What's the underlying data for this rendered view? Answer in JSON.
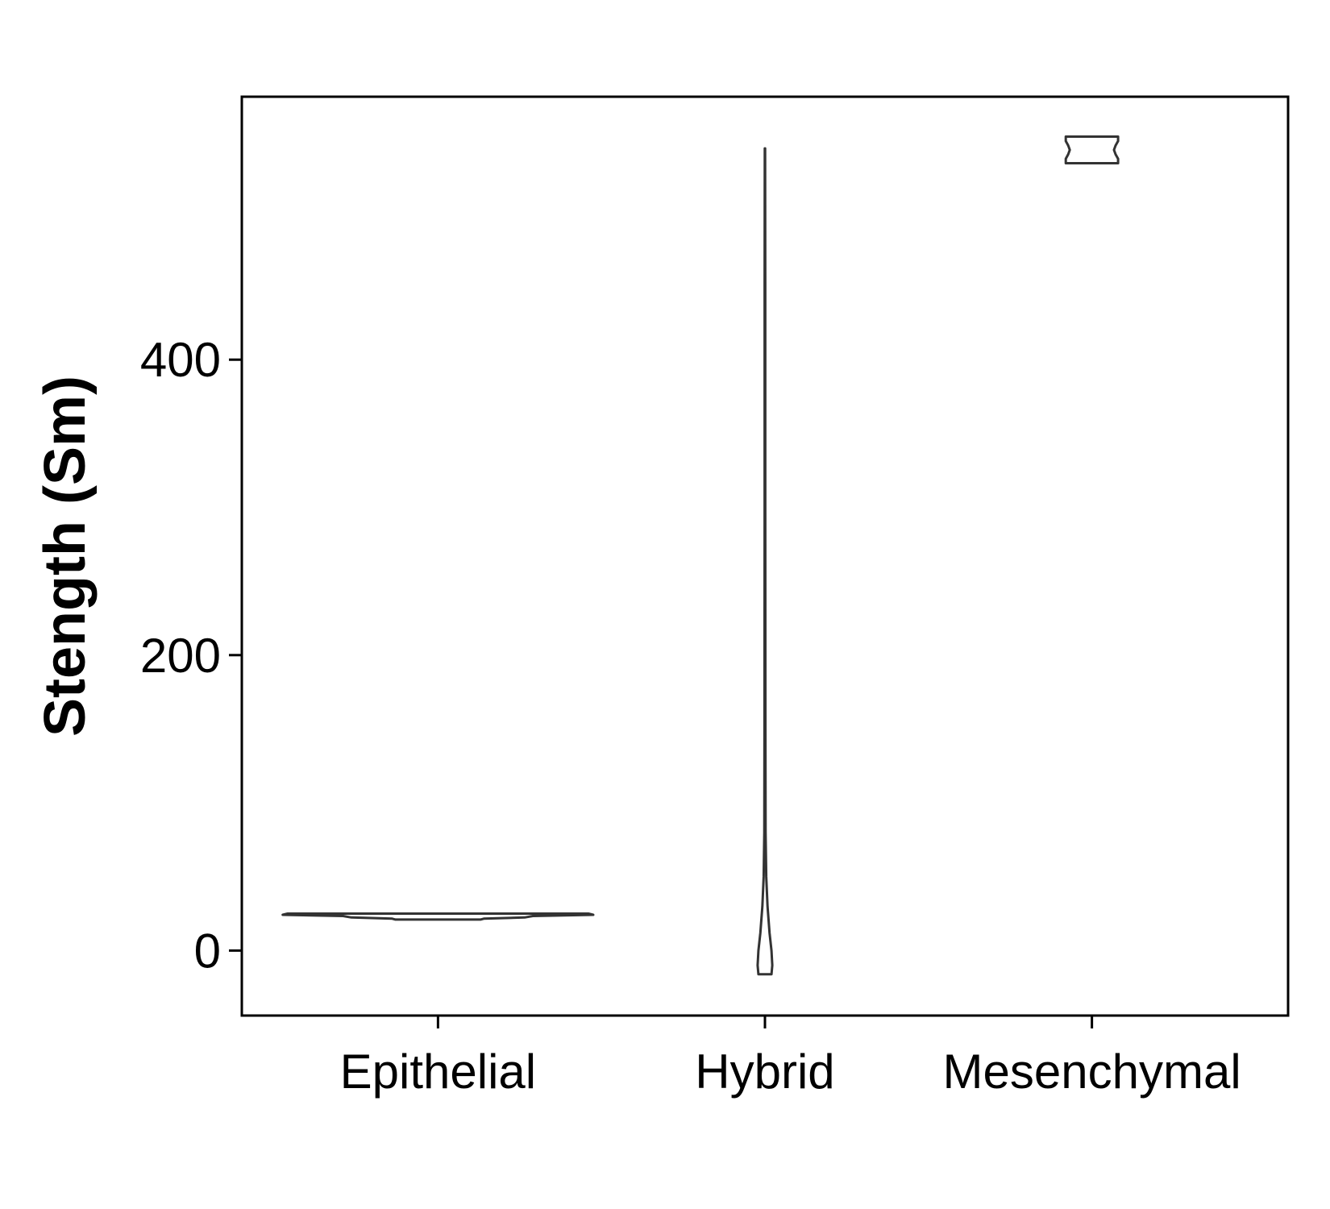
{
  "chart_data": {
    "type": "violin",
    "title": "",
    "xlabel": "",
    "ylabel": "Stength (Sm)",
    "categories": [
      "Epithelial",
      "Hybrid",
      "Mesenchymal"
    ],
    "ylim": [
      -44,
      578
    ],
    "yticks": [
      0,
      200,
      400
    ],
    "grid": false,
    "legend": "none",
    "series": [
      {
        "category": "Epithelial",
        "min": 21,
        "max": 25,
        "density": [
          {
            "y": 21,
            "w": 0.26
          },
          {
            "y": 21.6,
            "w": 0.28
          },
          {
            "y": 22.4,
            "w": 0.53
          },
          {
            "y": 23.4,
            "w": 0.58
          },
          {
            "y": 24.2,
            "w": 0.95
          },
          {
            "y": 25,
            "w": 0.92
          }
        ]
      },
      {
        "category": "Hybrid",
        "min": -16,
        "max": 543,
        "density": [
          {
            "y": -16,
            "w": 0.04
          },
          {
            "y": -10,
            "w": 0.045
          },
          {
            "y": 0,
            "w": 0.04
          },
          {
            "y": 12,
            "w": 0.028
          },
          {
            "y": 30,
            "w": 0.016
          },
          {
            "y": 50,
            "w": 0.008
          },
          {
            "y": 80,
            "w": 0.004
          },
          {
            "y": 150,
            "w": 0.003
          },
          {
            "y": 300,
            "w": 0.002
          },
          {
            "y": 450,
            "w": 0.002
          },
          {
            "y": 543,
            "w": 0.001
          }
        ]
      },
      {
        "category": "Mesenchymal",
        "min": 533,
        "max": 551,
        "density": [
          {
            "y": 533,
            "w": 0.16
          },
          {
            "y": 536,
            "w": 0.16
          },
          {
            "y": 539,
            "w": 0.145
          },
          {
            "y": 542,
            "w": 0.135
          },
          {
            "y": 545,
            "w": 0.145
          },
          {
            "y": 548,
            "w": 0.16
          },
          {
            "y": 551,
            "w": 0.16
          }
        ]
      }
    ]
  }
}
